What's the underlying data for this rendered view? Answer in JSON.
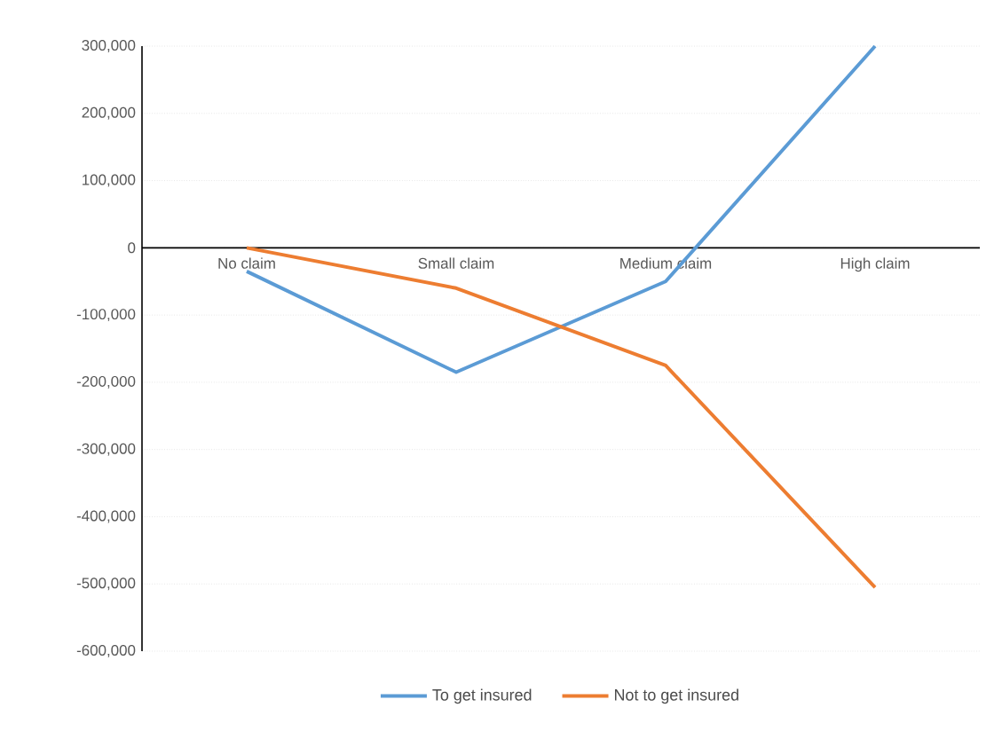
{
  "chart_data": {
    "type": "line",
    "categories": [
      "No claim",
      "Small claim",
      "Medium claim",
      "High claim"
    ],
    "series": [
      {
        "name": "To get insured",
        "color": "#5b9bd5",
        "values": [
          -35000,
          -185000,
          -50000,
          300000
        ]
      },
      {
        "name": "Not to get insured",
        "color": "#ed7d31",
        "values": [
          0,
          -60000,
          -175000,
          -505000
        ]
      }
    ],
    "ylim": [
      -600000,
      300000
    ],
    "yticks": [
      {
        "value": -600000,
        "label": "-600,000"
      },
      {
        "value": -500000,
        "label": "-500,000"
      },
      {
        "value": -400000,
        "label": "-400,000"
      },
      {
        "value": -300000,
        "label": "-300,000"
      },
      {
        "value": -200000,
        "label": "-200,000"
      },
      {
        "value": -100000,
        "label": "-100,000"
      },
      0,
      {
        "value": 100000,
        "label": "100,000"
      },
      {
        "value": 200000,
        "label": "200,000"
      },
      {
        "value": 300000,
        "label": "300,000"
      }
    ],
    "grid": "y",
    "legend": "bottom",
    "marker": "none",
    "line_style": "solid"
  }
}
